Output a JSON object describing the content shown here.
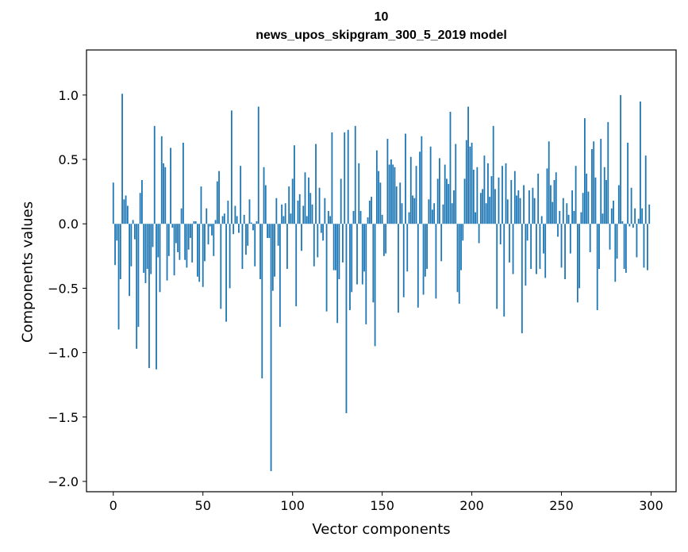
{
  "chart_data": {
    "type": "bar",
    "title": "10",
    "subtitle": "news_upos_skipgram_300_5_2019 model",
    "xlabel": "Vector components",
    "ylabel": "Components values",
    "xlim": [
      -14.95,
      313.95
    ],
    "ylim": [
      -2.08,
      1.35
    ],
    "x_ticks": [
      0,
      50,
      100,
      150,
      200,
      250,
      300
    ],
    "x_tick_labels": [
      "0",
      "50",
      "100",
      "150",
      "200",
      "250",
      "300"
    ],
    "y_ticks": [
      1.0,
      0.5,
      0.0,
      -0.5,
      -1.0,
      -1.5,
      -2.0
    ],
    "y_tick_labels": [
      "1.0",
      "0.5",
      "0.0",
      "−0.5",
      "−1.0",
      "−1.5",
      "−2.0"
    ],
    "grid": false,
    "bar_color": "#1f77b4",
    "values": [
      0.32,
      -0.32,
      -0.13,
      -0.82,
      -0.43,
      1.01,
      0.19,
      0.22,
      0.14,
      -0.56,
      -0.33,
      0.03,
      -0.12,
      -0.97,
      -0.8,
      0.24,
      0.34,
      -0.38,
      -0.46,
      -0.35,
      -1.12,
      -0.39,
      -0.18,
      0.76,
      -1.13,
      -0.26,
      -0.53,
      0.68,
      0.47,
      0.44,
      -0.44,
      -0.25,
      0.59,
      -0.03,
      -0.4,
      -0.15,
      -0.22,
      -0.28,
      0.12,
      0.63,
      -0.28,
      -0.34,
      -0.2,
      -0.11,
      -0.3,
      0.02,
      0.02,
      -0.41,
      -0.45,
      0.29,
      -0.49,
      -0.29,
      0.12,
      -0.16,
      -0.02,
      -0.09,
      -0.25,
      0.03,
      0.33,
      0.41,
      -0.66,
      0.06,
      0.08,
      -0.76,
      0.18,
      -0.5,
      0.88,
      -0.08,
      0.14,
      0.06,
      -0.07,
      0.45,
      -0.35,
      0.07,
      -0.24,
      -0.17,
      0.19,
      0.01,
      -0.05,
      -0.33,
      0.02,
      0.91,
      -0.43,
      -1.2,
      0.44,
      0.3,
      -0.11,
      -0.11,
      -1.92,
      -0.52,
      -0.41,
      0.2,
      -0.17,
      -0.8,
      0.15,
      0.06,
      0.16,
      -0.35,
      0.29,
      0.08,
      0.35,
      0.61,
      -0.64,
      0.18,
      0.23,
      -0.21,
      0.14,
      0.4,
      0.06,
      0.36,
      0.24,
      0.15,
      -0.33,
      0.62,
      -0.26,
      0.28,
      -0.07,
      -0.13,
      0.2,
      -0.68,
      0.1,
      0.06,
      0.71,
      -0.36,
      -0.36,
      -0.77,
      -0.43,
      0.35,
      -0.3,
      0.71,
      -1.47,
      0.73,
      -0.67,
      -0.53,
      0.1,
      0.76,
      -0.47,
      0.47,
      0.1,
      -0.47,
      -0.37,
      -0.78,
      0.05,
      0.18,
      0.21,
      -0.61,
      -0.95,
      0.57,
      0.41,
      0.32,
      0.07,
      -0.25,
      -0.23,
      0.66,
      0.46,
      0.5,
      0.46,
      0.44,
      0.29,
      -0.69,
      0.32,
      0.16,
      -0.57,
      0.7,
      -0.37,
      0.09,
      0.52,
      0.22,
      0.2,
      0.45,
      -0.65,
      0.56,
      0.68,
      -0.55,
      -0.41,
      -0.35,
      0.19,
      0.6,
      0.11,
      0.16,
      -0.58,
      0.35,
      0.51,
      -0.29,
      0.15,
      0.46,
      0.35,
      0.31,
      0.87,
      0.16,
      0.26,
      0.62,
      -0.53,
      -0.62,
      -0.36,
      -0.13,
      0.35,
      0.65,
      0.91,
      0.6,
      0.63,
      0.42,
      0.09,
      0.44,
      -0.15,
      0.24,
      0.27,
      0.53,
      0.16,
      0.47,
      0.21,
      0.37,
      0.76,
      0.27,
      -0.66,
      0.36,
      -0.16,
      0.45,
      -0.72,
      0.47,
      0.19,
      -0.3,
      0.34,
      -0.39,
      0.41,
      0.22,
      0.26,
      0.2,
      -0.85,
      0.3,
      -0.48,
      -0.13,
      0.26,
      -0.35,
      0.28,
      0.2,
      -0.39,
      0.39,
      -0.35,
      0.06,
      -0.23,
      -0.42,
      0.43,
      0.64,
      0.3,
      0.17,
      0.34,
      0.4,
      -0.1,
      0.1,
      -0.34,
      0.2,
      -0.43,
      0.16,
      0.07,
      -0.23,
      0.26,
      0.1,
      0.45,
      -0.61,
      -0.5,
      0.09,
      0.24,
      0.82,
      0.39,
      0.25,
      -0.22,
      0.58,
      0.64,
      0.36,
      -0.67,
      -0.35,
      0.66,
      0.08,
      0.44,
      0.34,
      0.79,
      -0.2,
      0.12,
      0.18,
      -0.45,
      -0.27,
      0.3,
      1.0,
      0.02,
      -0.35,
      -0.38,
      0.63,
      -0.02,
      0.28,
      -0.03,
      0.12,
      -0.26,
      0.04,
      0.95,
      0.12,
      -0.34,
      0.53,
      -0.36,
      0.15
    ]
  }
}
